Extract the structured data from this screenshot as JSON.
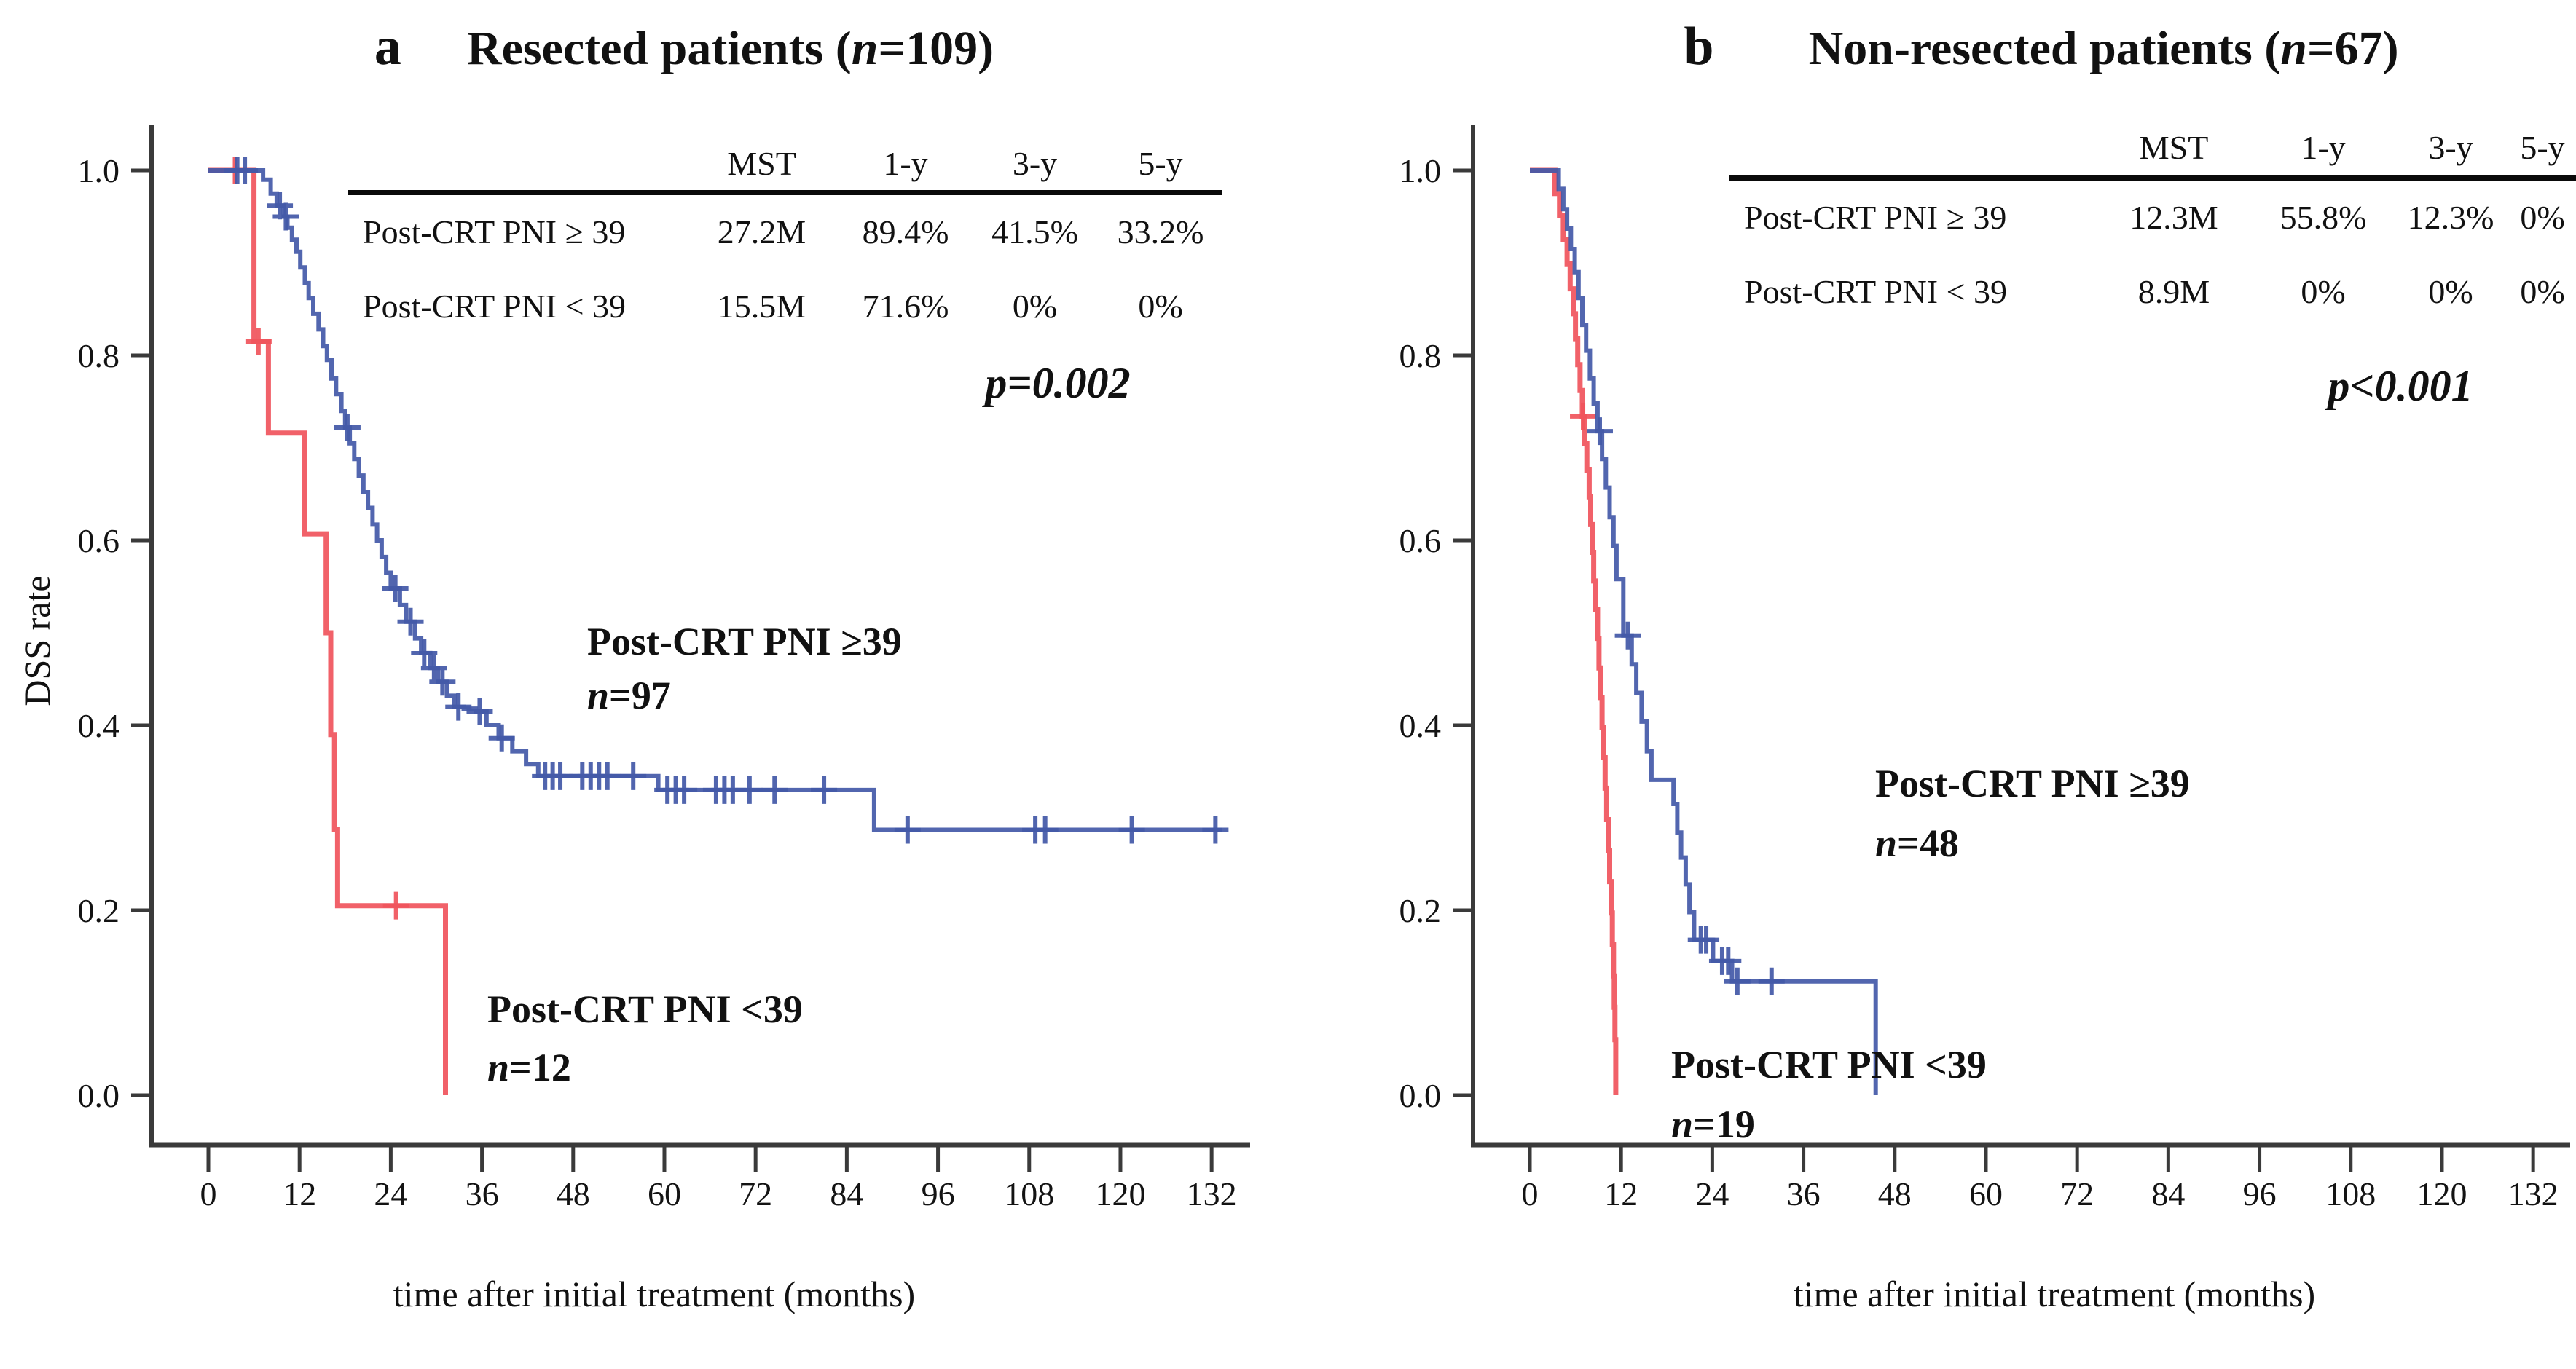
{
  "panels": [
    {
      "letter": "a",
      "title_prefix": "Resected patients (",
      "title_n": "n",
      "title_suffix": "=109)",
      "y_axis_label": "DSS rate",
      "x_axis_label": "time after initial treatment (months)",
      "table": {
        "headers": [
          "MST",
          "1-y",
          "3-y",
          "5-y"
        ],
        "rows": [
          {
            "label": "Post-CRT PNI ≥ 39",
            "mst": "27.2M",
            "y1": "89.4%",
            "y3": "41.5%",
            "y5": "33.2%"
          },
          {
            "label": "Post-CRT PNI < 39",
            "mst": "15.5M",
            "y1": "71.6%",
            "y3": "0%",
            "y5": "0%"
          }
        ]
      },
      "p_italic": "p",
      "p_value": "=0.002",
      "labels": {
        "blue_line1": "Post-CRT PNI  ≥39",
        "blue_n_italic": "n",
        "blue_n_value": "=97",
        "red_line1": "Post-CRT PNI <39",
        "red_n_italic": "n",
        "red_n_value": "=12"
      }
    },
    {
      "letter": "b",
      "title_prefix": "Non-resected patients (",
      "title_n": "n",
      "title_suffix": "=67)",
      "y_axis_label": "",
      "x_axis_label": "time after initial treatment (months)",
      "table": {
        "headers": [
          "MST",
          "1-y",
          "3-y",
          "5-y"
        ],
        "rows": [
          {
            "label": "Post-CRT PNI ≥ 39",
            "mst": "12.3M",
            "y1": "55.8%",
            "y3": "12.3%",
            "y5": "0%"
          },
          {
            "label": "Post-CRT PNI < 39",
            "mst": "8.9M",
            "y1": "0%",
            "y3": "0%",
            "y5": "0%"
          }
        ]
      },
      "p_italic": "p",
      "p_value": "<0.001",
      "labels": {
        "blue_line1": "Post-CRT PNI  ≥39",
        "blue_n_italic": "n",
        "blue_n_value": "=48",
        "red_line1": "Post-CRT PNI <39",
        "red_n_italic": "n",
        "red_n_value": "=19"
      }
    }
  ],
  "chart_data": [
    {
      "type": "line",
      "subtype": "kaplan-meier-step",
      "panel": "a",
      "title": "Resected patients (n=109)",
      "xlabel": "time after initial treatment (months)",
      "ylabel": "DSS rate",
      "xlim": [
        0,
        138
      ],
      "ylim": [
        0,
        1.0
      ],
      "x_ticks": [
        0,
        12,
        24,
        36,
        48,
        60,
        72,
        84,
        96,
        108,
        120,
        132
      ],
      "y_ticks": [
        1.0,
        0.8,
        0.6,
        0.4,
        0.2,
        0.0
      ],
      "y_tick_labels": [
        "1.0",
        "0.8",
        "0.6",
        "0.4",
        "0.2",
        "0.0"
      ],
      "grid": false,
      "legend_position": "in-plot-text",
      "series": [
        {
          "name": "Post-CRT PNI ≥39 (n=97)",
          "color": "#4359a8",
          "mst_months": 27.2,
          "survival_1y": 0.894,
          "survival_3y": 0.415,
          "survival_5y": 0.332,
          "end": 133.4,
          "points": [
            [
              0,
              1.0
            ],
            [
              7.2,
              0.99
            ],
            [
              8.2,
              0.975
            ],
            [
              9.0,
              0.962
            ],
            [
              9.9,
              0.95
            ],
            [
              10.4,
              0.938
            ],
            [
              11.0,
              0.925
            ],
            [
              11.6,
              0.912
            ],
            [
              12.1,
              0.895
            ],
            [
              12.7,
              0.878
            ],
            [
              13.2,
              0.862
            ],
            [
              13.8,
              0.845
            ],
            [
              14.5,
              0.828
            ],
            [
              15.1,
              0.81
            ],
            [
              15.6,
              0.795
            ],
            [
              16.2,
              0.775
            ],
            [
              16.8,
              0.758
            ],
            [
              17.5,
              0.74
            ],
            [
              18.0,
              0.722
            ],
            [
              18.6,
              0.705
            ],
            [
              19.2,
              0.688
            ],
            [
              19.8,
              0.67
            ],
            [
              20.4,
              0.652
            ],
            [
              21.0,
              0.635
            ],
            [
              21.6,
              0.617
            ],
            [
              22.2,
              0.6
            ],
            [
              22.8,
              0.582
            ],
            [
              23.4,
              0.565
            ],
            [
              24.0,
              0.548
            ],
            [
              25.2,
              0.53
            ],
            [
              26.0,
              0.512
            ],
            [
              27.2,
              0.494
            ],
            [
              28.0,
              0.478
            ],
            [
              29.2,
              0.462
            ],
            [
              30.2,
              0.447
            ],
            [
              31.4,
              0.432
            ],
            [
              32.4,
              0.42
            ],
            [
              33.6,
              0.418
            ],
            [
              35.2,
              0.415
            ],
            [
              36.6,
              0.4
            ],
            [
              38.2,
              0.386
            ],
            [
              40.0,
              0.372
            ],
            [
              41.8,
              0.358
            ],
            [
              43.4,
              0.345
            ],
            [
              59.2,
              0.33
            ],
            [
              87.6,
              0.287
            ]
          ],
          "censors": [
            [
              3.8,
              1.0
            ],
            [
              4.8,
              1.0
            ],
            [
              9.4,
              0.962
            ],
            [
              10.2,
              0.95
            ],
            [
              18.3,
              0.722
            ],
            [
              24.6,
              0.548
            ],
            [
              26.6,
              0.512
            ],
            [
              28.4,
              0.478
            ],
            [
              29.7,
              0.462
            ],
            [
              30.8,
              0.447
            ],
            [
              32.9,
              0.42
            ],
            [
              35.7,
              0.415
            ],
            [
              38.6,
              0.386
            ],
            [
              44.3,
              0.345
            ],
            [
              45.3,
              0.345
            ],
            [
              46.3,
              0.345
            ],
            [
              49.2,
              0.345
            ],
            [
              50.3,
              0.345
            ],
            [
              51.4,
              0.345
            ],
            [
              52.5,
              0.345
            ],
            [
              55.9,
              0.345
            ],
            [
              60.4,
              0.33
            ],
            [
              61.5,
              0.33
            ],
            [
              62.6,
              0.33
            ],
            [
              66.8,
              0.33
            ],
            [
              67.9,
              0.33
            ],
            [
              69.0,
              0.33
            ],
            [
              71.2,
              0.33
            ],
            [
              74.5,
              0.33
            ],
            [
              81.0,
              0.33
            ],
            [
              92.0,
              0.287
            ],
            [
              108.8,
              0.287
            ],
            [
              110.1,
              0.287
            ],
            [
              121.5,
              0.287
            ],
            [
              132.5,
              0.287
            ]
          ]
        },
        {
          "name": "Post-CRT PNI <39 (n=12)",
          "color": "#f0545c",
          "mst_months": 15.5,
          "survival_1y": 0.716,
          "survival_3y": 0.0,
          "survival_5y": 0.0,
          "end": 31.2,
          "points": [
            [
              0,
              1.0
            ],
            [
              6.0,
              0.815
            ],
            [
              7.9,
              0.716
            ],
            [
              12.6,
              0.607
            ],
            [
              15.5,
              0.5
            ],
            [
              16.1,
              0.39
            ],
            [
              16.6,
              0.287
            ],
            [
              17.0,
              0.205
            ],
            [
              31.2,
              0.0
            ]
          ],
          "censors": [
            [
              3.5,
              1.0
            ],
            [
              6.6,
              0.815
            ],
            [
              24.7,
              0.205
            ]
          ]
        }
      ]
    },
    {
      "type": "line",
      "subtype": "kaplan-meier-step",
      "panel": "b",
      "title": "Non-resected patients (n=67)",
      "xlabel": "time after initial treatment (months)",
      "ylabel": "DSS rate",
      "xlim": [
        0,
        138
      ],
      "ylim": [
        0,
        1.0
      ],
      "x_ticks": [
        0,
        12,
        24,
        36,
        48,
        60,
        72,
        84,
        96,
        108,
        120,
        132
      ],
      "y_ticks": [
        1.0,
        0.8,
        0.6,
        0.4,
        0.2,
        0.0
      ],
      "y_tick_labels": [
        "1.0",
        "0.8",
        "0.6",
        "0.4",
        "0.2",
        "0.0"
      ],
      "grid": false,
      "legend_position": "in-plot-text",
      "series": [
        {
          "name": "Post-CRT PNI ≥39 (n=48)",
          "color": "#4359a8",
          "mst_months": 12.3,
          "survival_1y": 0.558,
          "survival_3y": 0.123,
          "survival_5y": 0.0,
          "end": 45.5,
          "points": [
            [
              0,
              1.0
            ],
            [
              3.8,
              0.98
            ],
            [
              4.4,
              0.958
            ],
            [
              4.9,
              0.937
            ],
            [
              5.4,
              0.915
            ],
            [
              5.9,
              0.89
            ],
            [
              6.4,
              0.862
            ],
            [
              6.9,
              0.833
            ],
            [
              7.4,
              0.805
            ],
            [
              7.9,
              0.775
            ],
            [
              8.4,
              0.748
            ],
            [
              8.9,
              0.718
            ],
            [
              9.5,
              0.688
            ],
            [
              10.0,
              0.657
            ],
            [
              10.5,
              0.625
            ],
            [
              11.0,
              0.594
            ],
            [
              11.4,
              0.558
            ],
            [
              12.3,
              0.497
            ],
            [
              13.4,
              0.466
            ],
            [
              14.0,
              0.435
            ],
            [
              14.7,
              0.404
            ],
            [
              15.4,
              0.372
            ],
            [
              16.0,
              0.341
            ],
            [
              18.9,
              0.315
            ],
            [
              19.4,
              0.284
            ],
            [
              19.9,
              0.257
            ],
            [
              20.5,
              0.228
            ],
            [
              21.0,
              0.198
            ],
            [
              21.6,
              0.168
            ],
            [
              24.1,
              0.145
            ],
            [
              26.6,
              0.123
            ],
            [
              45.5,
              0.0
            ]
          ],
          "censors": [
            [
              9.2,
              0.718
            ],
            [
              12.9,
              0.497
            ],
            [
              22.5,
              0.168
            ],
            [
              23.2,
              0.168
            ],
            [
              25.3,
              0.145
            ],
            [
              26.1,
              0.145
            ],
            [
              27.3,
              0.123
            ],
            [
              31.8,
              0.123
            ]
          ]
        },
        {
          "name": "Post-CRT PNI <39 (n=19)",
          "color": "#f0545c",
          "mst_months": 8.9,
          "survival_1y": 0.0,
          "survival_3y": 0.0,
          "survival_5y": 0.0,
          "end": 11.3,
          "points": [
            [
              0,
              1.0
            ],
            [
              3.3,
              0.975
            ],
            [
              3.9,
              0.951
            ],
            [
              4.4,
              0.925
            ],
            [
              4.9,
              0.899
            ],
            [
              5.3,
              0.872
            ],
            [
              5.7,
              0.845
            ],
            [
              6.0,
              0.818
            ],
            [
              6.3,
              0.79
            ],
            [
              6.6,
              0.762
            ],
            [
              6.9,
              0.734
            ],
            [
              7.2,
              0.705
            ],
            [
              7.5,
              0.676
            ],
            [
              7.8,
              0.647
            ],
            [
              8.0,
              0.617
            ],
            [
              8.2,
              0.587
            ],
            [
              8.4,
              0.556
            ],
            [
              8.6,
              0.525
            ],
            [
              8.9,
              0.494
            ],
            [
              9.1,
              0.462
            ],
            [
              9.3,
              0.43
            ],
            [
              9.5,
              0.398
            ],
            [
              9.7,
              0.365
            ],
            [
              9.9,
              0.332
            ],
            [
              10.1,
              0.298
            ],
            [
              10.3,
              0.265
            ],
            [
              10.5,
              0.231
            ],
            [
              10.7,
              0.197
            ],
            [
              10.85,
              0.163
            ],
            [
              11.0,
              0.129
            ],
            [
              11.1,
              0.095
            ],
            [
              11.2,
              0.06
            ],
            [
              11.3,
              0.0
            ]
          ],
          "censors": [
            [
              7.0,
              0.734
            ]
          ]
        }
      ]
    }
  ]
}
